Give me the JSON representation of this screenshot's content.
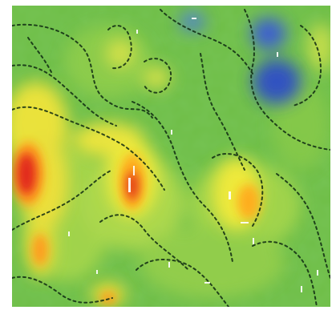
{
  "image": {
    "kind": "heatmap-style terrain / density map",
    "palette": {
      "low": "#3a5bd6",
      "mid_low": "#66b84a",
      "mid": "#a9d24a",
      "mid_high": "#f3ea3a",
      "high": "#ff9a1f",
      "peak": "#e0241d",
      "lines": "#0f2a12",
      "speckle": "#ffffff"
    }
  }
}
